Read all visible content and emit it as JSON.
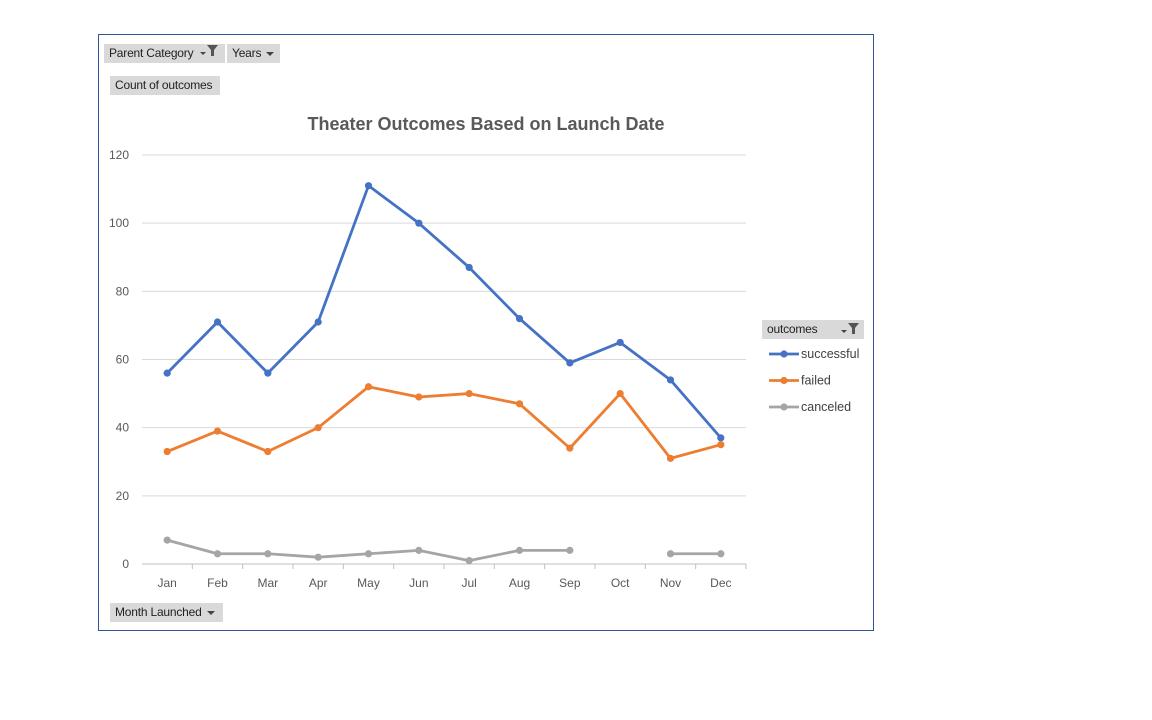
{
  "pivot": {
    "parent_category_label": "Parent Category",
    "years_label": "Years",
    "values_label": "Count of outcomes",
    "axis_field_label": "Month Launched",
    "legend_field_label": "outcomes"
  },
  "chart_data": {
    "type": "line",
    "title": "Theater Outcomes Based on Launch Date",
    "categories": [
      "Jan",
      "Feb",
      "Mar",
      "Apr",
      "May",
      "Jun",
      "Jul",
      "Aug",
      "Sep",
      "Oct",
      "Nov",
      "Dec"
    ],
    "ylim": [
      0,
      120
    ],
    "yticks": [
      0,
      20,
      40,
      60,
      80,
      100,
      120
    ],
    "grid": true,
    "legend_position": "right",
    "series": [
      {
        "name": "successful",
        "color": "#4472c4",
        "values": [
          56,
          71,
          56,
          71,
          111,
          100,
          87,
          72,
          59,
          65,
          54,
          37
        ]
      },
      {
        "name": "failed",
        "color": "#ed7d31",
        "values": [
          33,
          39,
          33,
          40,
          52,
          49,
          50,
          47,
          34,
          50,
          31,
          35
        ]
      },
      {
        "name": "canceled",
        "color": "#a5a5a5",
        "values": [
          7,
          3,
          3,
          2,
          3,
          4,
          1,
          4,
          4,
          null,
          3,
          3
        ]
      }
    ]
  }
}
